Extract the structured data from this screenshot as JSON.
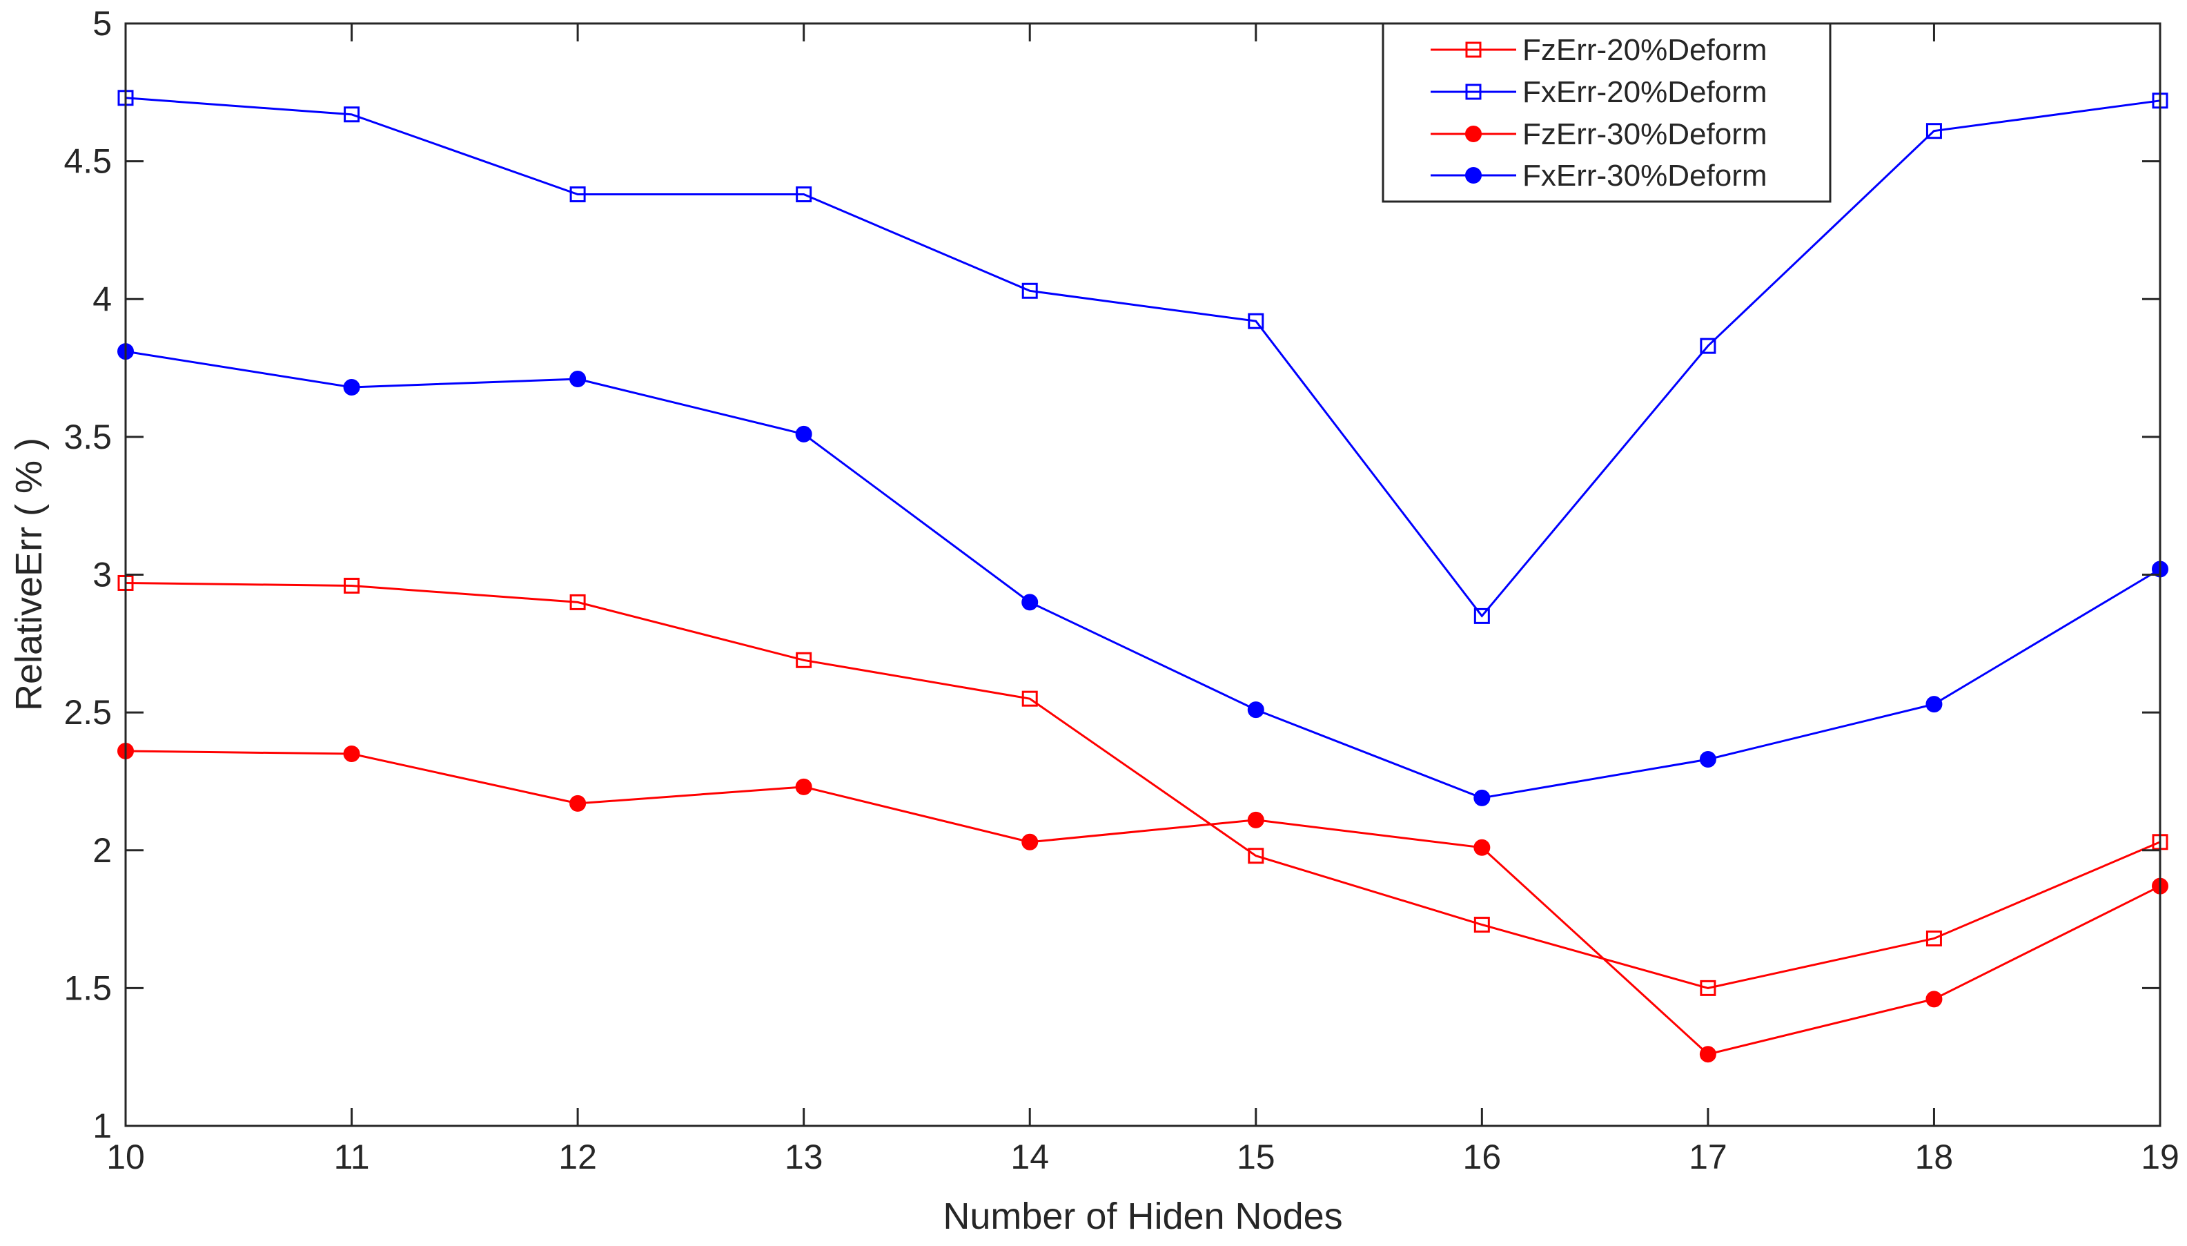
{
  "chart_data": {
    "type": "line",
    "xlabel": "Number of Hiden Nodes",
    "ylabel": "RelativeErr ( % )",
    "xlim": [
      10,
      19
    ],
    "ylim": [
      1,
      5
    ],
    "x": [
      10,
      11,
      12,
      13,
      14,
      15,
      16,
      17,
      18,
      19
    ],
    "xticks": [
      "10",
      "11",
      "12",
      "13",
      "14",
      "15",
      "16",
      "17",
      "18",
      "19"
    ],
    "yticks": [
      "1",
      "1.5",
      "2",
      "2.5",
      "3",
      "3.5",
      "4",
      "4.5",
      "5"
    ],
    "ytick_values": [
      1,
      1.5,
      2,
      2.5,
      3,
      3.5,
      4,
      4.5,
      5
    ],
    "legend_position": "top-right",
    "series": [
      {
        "name": "FzErr-20%Deform",
        "color": "#ff0000",
        "marker": "square-open",
        "values": [
          2.97,
          2.96,
          2.9,
          2.69,
          2.55,
          1.98,
          1.73,
          1.5,
          1.68,
          2.03
        ]
      },
      {
        "name": "FxErr-20%Deform",
        "color": "#0000ff",
        "marker": "square-open",
        "values": [
          4.73,
          4.67,
          4.38,
          4.38,
          4.03,
          3.92,
          2.85,
          3.83,
          4.61,
          4.72
        ]
      },
      {
        "name": "FzErr-30%Deform",
        "color": "#ff0000",
        "marker": "circle-filled",
        "values": [
          2.36,
          2.35,
          2.17,
          2.23,
          2.03,
          2.11,
          2.01,
          1.26,
          1.46,
          1.87
        ]
      },
      {
        "name": "FxErr-30%Deform",
        "color": "#0000ff",
        "marker": "circle-filled",
        "values": [
          3.81,
          3.68,
          3.71,
          3.51,
          2.9,
          2.51,
          2.19,
          2.33,
          2.53,
          3.02
        ]
      }
    ]
  }
}
